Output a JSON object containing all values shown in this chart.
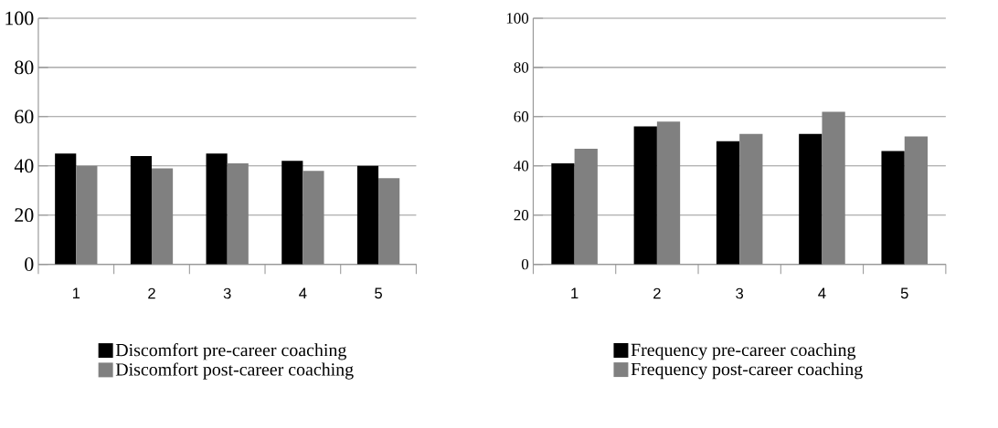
{
  "chart_data": [
    {
      "type": "bar",
      "categories": [
        "1",
        "2",
        "3",
        "4",
        "5"
      ],
      "series": [
        {
          "name": "Discomfort pre-career coaching",
          "color": "#000000",
          "values": [
            45,
            44,
            45,
            42,
            40
          ]
        },
        {
          "name": "Discomfort post-career coaching",
          "color": "#808080",
          "values": [
            40,
            39,
            41,
            38,
            35
          ]
        }
      ],
      "ylim": [
        0,
        100
      ],
      "yticks": [
        0,
        20,
        40,
        60,
        80,
        100
      ],
      "grid": "y",
      "legend": "bottom"
    },
    {
      "type": "bar",
      "categories": [
        "1",
        "2",
        "3",
        "4",
        "5"
      ],
      "series": [
        {
          "name": "Frequency pre-career coaching",
          "color": "#000000",
          "values": [
            41,
            56,
            50,
            53,
            46
          ]
        },
        {
          "name": "Frequency post-career coaching",
          "color": "#808080",
          "values": [
            47,
            58,
            53,
            62,
            52
          ]
        }
      ],
      "ylim": [
        0,
        100
      ],
      "yticks": [
        0,
        20,
        40,
        60,
        80,
        100
      ],
      "grid": "y",
      "legend": "bottom"
    }
  ]
}
